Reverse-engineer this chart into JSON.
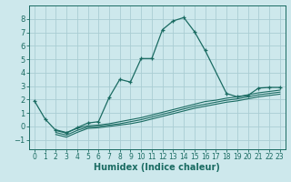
{
  "xlabel": "Humidex (Indice chaleur)",
  "bg_color": "#cde8ec",
  "grid_color": "#aacdd3",
  "line_color": "#1a6b62",
  "xlim": [
    -0.5,
    23.5
  ],
  "ylim": [
    -1.7,
    9.0
  ],
  "xticks": [
    0,
    1,
    2,
    3,
    4,
    5,
    6,
    7,
    8,
    9,
    10,
    11,
    12,
    13,
    14,
    15,
    16,
    17,
    18,
    19,
    20,
    21,
    22,
    23
  ],
  "yticks": [
    -1,
    0,
    1,
    2,
    3,
    4,
    5,
    6,
    7,
    8
  ],
  "lines": [
    {
      "x": [
        0,
        1,
        2,
        3,
        4,
        5,
        6,
        7,
        8,
        9,
        10,
        11,
        12,
        13,
        14,
        15,
        16,
        18,
        19,
        20,
        21,
        22,
        23
      ],
      "y": [
        1.9,
        0.55,
        -0.3,
        -0.5,
        -0.1,
        0.25,
        0.35,
        2.15,
        3.5,
        3.3,
        5.05,
        5.05,
        7.2,
        7.85,
        8.1,
        7.05,
        5.65,
        2.45,
        2.2,
        2.3,
        2.85,
        2.9,
        2.9
      ],
      "marker": "+"
    },
    {
      "x": [
        2,
        3,
        4,
        5,
        6,
        7,
        8,
        9,
        10,
        11,
        12,
        13,
        14,
        15,
        16,
        17,
        18,
        19,
        20,
        21,
        22,
        23
      ],
      "y": [
        -0.25,
        -0.45,
        -0.15,
        0.05,
        0.1,
        0.2,
        0.35,
        0.5,
        0.65,
        0.85,
        1.05,
        1.25,
        1.45,
        1.65,
        1.85,
        1.95,
        2.1,
        2.2,
        2.35,
        2.5,
        2.6,
        2.7
      ],
      "marker": null
    },
    {
      "x": [
        2,
        3,
        4,
        5,
        6,
        7,
        8,
        9,
        10,
        11,
        12,
        13,
        14,
        15,
        16,
        17,
        18,
        19,
        20,
        21,
        22,
        23
      ],
      "y": [
        -0.45,
        -0.65,
        -0.3,
        -0.05,
        0.0,
        0.1,
        0.2,
        0.35,
        0.5,
        0.7,
        0.9,
        1.1,
        1.3,
        1.5,
        1.65,
        1.8,
        1.95,
        2.05,
        2.2,
        2.35,
        2.45,
        2.55
      ],
      "marker": null
    },
    {
      "x": [
        2,
        3,
        4,
        5,
        6,
        7,
        8,
        9,
        10,
        11,
        12,
        13,
        14,
        15,
        16,
        17,
        18,
        19,
        20,
        21,
        22,
        23
      ],
      "y": [
        -0.6,
        -0.8,
        -0.45,
        -0.15,
        -0.1,
        0.0,
        0.1,
        0.2,
        0.35,
        0.55,
        0.75,
        0.95,
        1.15,
        1.35,
        1.5,
        1.65,
        1.8,
        1.9,
        2.05,
        2.2,
        2.3,
        2.4
      ],
      "marker": null
    }
  ]
}
